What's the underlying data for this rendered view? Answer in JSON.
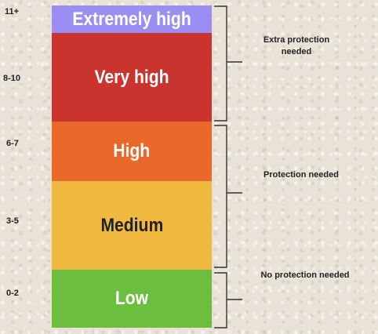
{
  "bands": [
    {
      "label": "Extremely high",
      "range": "11+",
      "color": "#9b8ef2",
      "text_color": "#ffffff"
    },
    {
      "label": "Very high",
      "range": "8-10",
      "color": "#ca342e",
      "text_color": "#ffffff"
    },
    {
      "label": "High",
      "range": "6-7",
      "color": "#e9682a",
      "text_color": "#ffffff"
    },
    {
      "label": "Medium",
      "range": "3-5",
      "color": "#efb83f",
      "text_color": "#222222"
    },
    {
      "label": "Low",
      "range": "0-2",
      "color": "#6cbf3e",
      "text_color": "#ffffff"
    }
  ],
  "notes": {
    "extra_protection": "Extra protection needed",
    "protection": "Protection needed",
    "no_protection": "No protection needed"
  },
  "colors": {
    "bracket": "#333333"
  }
}
